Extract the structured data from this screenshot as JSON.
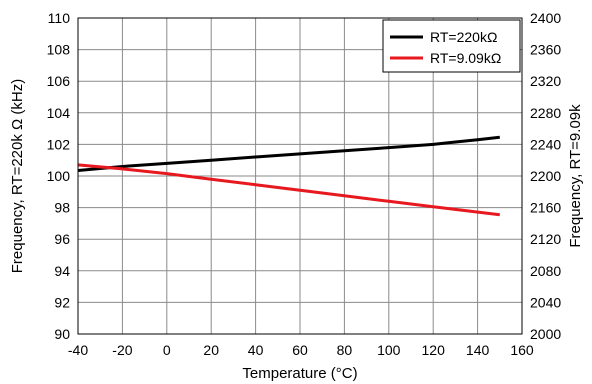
{
  "chart_data": {
    "type": "line",
    "xlabel": "Temperature (°C)",
    "ylabel_left": "Frequency, RT=220k Ω (kHz)",
    "ylabel_right": "Frequency, RT=9.09k",
    "xlim": [
      -40,
      160
    ],
    "ylim_left": [
      90,
      110
    ],
    "ylim_right": [
      2000,
      2400
    ],
    "x_ticks": [
      "-40",
      "-20",
      "0",
      "20",
      "40",
      "60",
      "80",
      "100",
      "120",
      "140",
      "160"
    ],
    "y_ticks_left": [
      "90",
      "92",
      "94",
      "96",
      "98",
      "100",
      "102",
      "104",
      "106",
      "108",
      "110"
    ],
    "y_ticks_right": [
      "2000",
      "2040",
      "2080",
      "2120",
      "2160",
      "2200",
      "2240",
      "2280",
      "2320",
      "2360",
      "2400"
    ],
    "grid": true,
    "legend_position": "top-right",
    "series": [
      {
        "name": "RT=220kΩ",
        "axis": "left",
        "color": "#000000",
        "x": [
          -40,
          -20,
          0,
          20,
          40,
          60,
          80,
          100,
          120,
          130,
          140,
          150
        ],
        "y": [
          100.35,
          100.6,
          100.8,
          101.0,
          101.2,
          101.4,
          101.6,
          101.8,
          102.0,
          102.15,
          102.3,
          102.45
        ]
      },
      {
        "name": "RT=9.09kΩ",
        "axis": "right",
        "color": "#e8181f",
        "x": [
          -40,
          -20,
          0,
          20,
          40,
          60,
          80,
          100,
          120,
          150
        ],
        "y": [
          2214,
          2209,
          2203,
          2196,
          2189,
          2182,
          2175,
          2168,
          2161,
          2151
        ]
      }
    ]
  }
}
